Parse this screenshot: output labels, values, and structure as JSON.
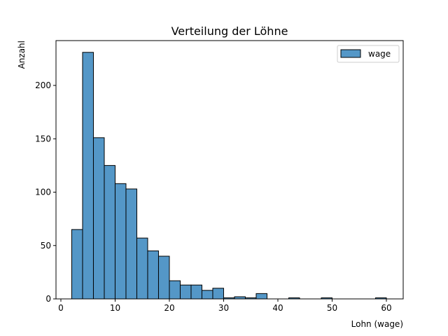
{
  "chart_data": {
    "type": "bar",
    "subtype": "histogram",
    "title": "Verteilung der Löhne",
    "xlabel": "Lohn (wage)",
    "ylabel": "Anzahl",
    "xlim": [
      -0.9,
      63.1
    ],
    "ylim": [
      0,
      242
    ],
    "xticks": [
      0,
      10,
      20,
      30,
      40,
      50,
      60
    ],
    "yticks": [
      0,
      50,
      100,
      150,
      200
    ],
    "grid": false,
    "legend_position": "top-right",
    "bar_color": "#5497c7",
    "edge_color": "#000000",
    "bin_edges": [
      2,
      4,
      6,
      8,
      10,
      12,
      14,
      16,
      18,
      20,
      22,
      24,
      26,
      28,
      30,
      32,
      34,
      36,
      38,
      40,
      42,
      44,
      46,
      48,
      50,
      52,
      54,
      56,
      58,
      60
    ],
    "series": [
      {
        "name": "wage",
        "values": [
          65,
          231,
          151,
          125,
          108,
          103,
          57,
          45,
          40,
          17,
          13,
          13,
          8,
          10,
          1,
          2,
          1,
          5,
          0,
          0,
          1,
          0,
          0,
          1,
          0,
          0,
          0,
          0,
          1
        ]
      }
    ]
  }
}
